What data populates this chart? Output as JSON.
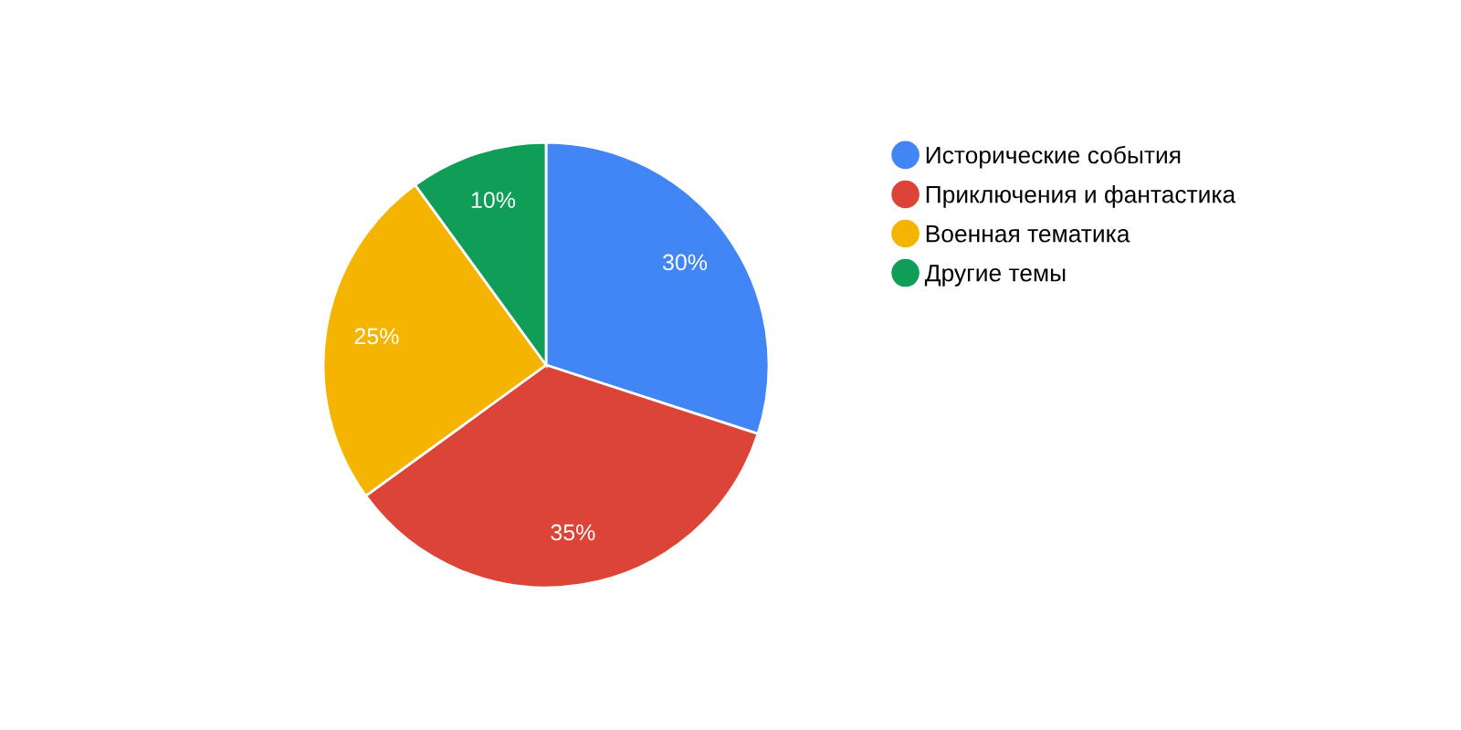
{
  "chart_data": {
    "type": "pie",
    "categories": [
      "Исторические события",
      "Приключения и фантастика",
      "Военная тематика",
      "Другие темы"
    ],
    "values": [
      30,
      35,
      25,
      10
    ],
    "colors": [
      "#4285f4",
      "#db4437",
      "#f4b400",
      "#0f9d58"
    ],
    "value_labels": [
      "30%",
      "35%",
      "25%",
      "10%"
    ],
    "legend": "right"
  }
}
